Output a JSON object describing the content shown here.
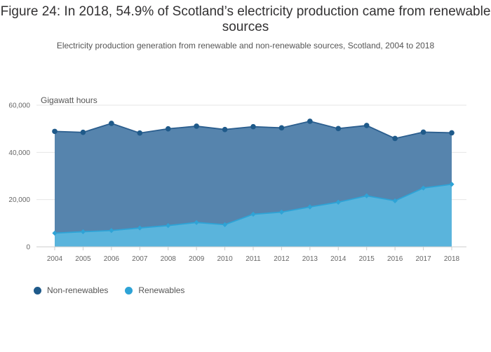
{
  "chart_data": {
    "type": "area",
    "title": "Figure 24: In 2018, 54.9% of Scotland’s electricity production came from renewable sources",
    "subtitle": "Electricity production generation from renewable and non-renewable sources, Scotland, 2004 to 2018",
    "ylabel": "Gigawatt hours",
    "xlabel": "",
    "ylim": [
      0,
      60000
    ],
    "yticks": [
      0,
      20000,
      40000,
      60000
    ],
    "ytick_labels": [
      "0",
      "20,000",
      "40,000",
      "60,000"
    ],
    "categories": [
      "2004",
      "2005",
      "2006",
      "2007",
      "2008",
      "2009",
      "2010",
      "2011",
      "2012",
      "2013",
      "2014",
      "2015",
      "2016",
      "2017",
      "2018"
    ],
    "stacked": true,
    "series": [
      {
        "name": "Renewables",
        "color": "#5ab4dc",
        "line_color": "#2ea3d6",
        "values": [
          5800,
          6400,
          6900,
          8000,
          9000,
          10300,
          9400,
          13800,
          14700,
          16900,
          18900,
          21600,
          19500,
          24900,
          26500
        ]
      },
      {
        "name": "Non-renewables",
        "color": "#5684ad",
        "line_color": "#2b5e8e",
        "totals": [
          48900,
          48500,
          52300,
          48200,
          50000,
          51100,
          49700,
          50900,
          50400,
          53200,
          50100,
          51400,
          45900,
          48600,
          48300
        ]
      }
    ],
    "legend": [
      {
        "label": "Non-renewables",
        "color": "#1f5a8a"
      },
      {
        "label": "Renewables",
        "color": "#2ea3d6"
      }
    ],
    "grid": true
  }
}
